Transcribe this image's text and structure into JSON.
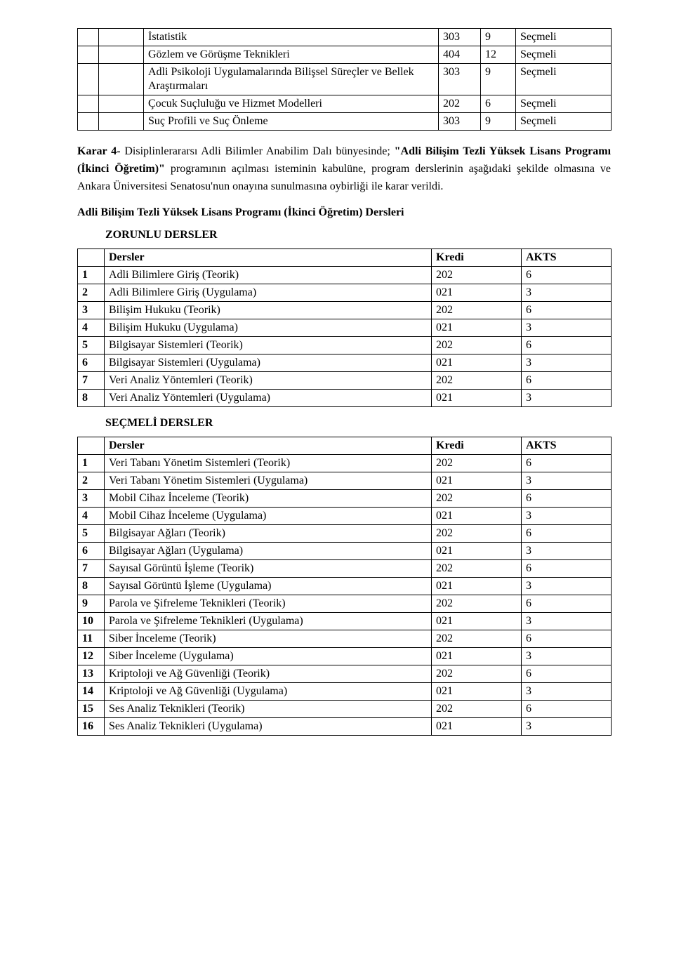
{
  "table1_rows": [
    {
      "name": "İstatistik",
      "code": "303",
      "n": "9",
      "type": "Seçmeli",
      "rowspan": 1
    },
    {
      "name": "Gözlem ve Görüşme Teknikleri",
      "code": "404",
      "n": "12",
      "type": "Seçmeli",
      "rowspan": 1
    },
    {
      "name": "Adli Psikoloji Uygulamalarında Bilişsel Süreçler ve Bellek Araştırmaları",
      "code": "303",
      "n": "9",
      "type": "Seçmeli",
      "rowspan": 1
    },
    {
      "name": "Çocuk Suçluluğu ve Hizmet Modelleri",
      "code": "202",
      "n": "6",
      "type": "Seçmeli",
      "rowspan": 1
    },
    {
      "name": "Suç Profili ve Suç Önleme",
      "code": "303",
      "n": "9",
      "type": "Seçmeli",
      "rowspan": 1
    }
  ],
  "karar_bold": "Karar 4-",
  "karar_rest1": " Disiplinlerararsı Adli Bilimler Anabilim Dalı bünyesinde; ",
  "karar_bold2": "\"Adli Bilişim Tezli Yüksek Lisans Programı (İkinci Öğretim)\"",
  "karar_rest2": " programının açılması isteminin kabulüne, program derslerinin aşağıdaki şekilde olmasına ve Ankara Üniversitesi Senatosu'nun onayına sunulmasına oybirliği ile karar verildi.",
  "program_title": "Adli Bilişim Tezli Yüksek Lisans Programı (İkinci Öğretim) Dersleri",
  "zorunlu_head": "ZORUNLU DERSLER",
  "secmeli_head": "SEÇMELİ DERSLER",
  "header_dersler": "Dersler",
  "header_kredi": "Kredi",
  "header_akts": "AKTS",
  "zorunlu_rows": [
    {
      "i": "1",
      "name": "Adli Bilimlere Giriş (Teorik)",
      "k": "202",
      "a": "6"
    },
    {
      "i": "2",
      "name": "Adli Bilimlere Giriş (Uygulama)",
      "k": "021",
      "a": "3"
    },
    {
      "i": "3",
      "name": "Bilişim Hukuku (Teorik)",
      "k": "202",
      "a": "6"
    },
    {
      "i": "4",
      "name": "Bilişim Hukuku (Uygulama)",
      "k": "021",
      "a": "3"
    },
    {
      "i": "5",
      "name": "Bilgisayar Sistemleri (Teorik)",
      "k": "202",
      "a": "6"
    },
    {
      "i": "6",
      "name": "Bilgisayar Sistemleri (Uygulama)",
      "k": "021",
      "a": "3"
    },
    {
      "i": "7",
      "name": "Veri Analiz Yöntemleri (Teorik)",
      "k": "202",
      "a": "6"
    },
    {
      "i": "8",
      "name": "Veri Analiz Yöntemleri (Uygulama)",
      "k": "021",
      "a": "3"
    }
  ],
  "secmeli_rows": [
    {
      "i": "1",
      "name": "Veri Tabanı Yönetim Sistemleri (Teorik)",
      "k": "202",
      "a": "6"
    },
    {
      "i": "2",
      "name": "Veri Tabanı Yönetim Sistemleri (Uygulama)",
      "k": "021",
      "a": "3"
    },
    {
      "i": "3",
      "name": "Mobil Cihaz İnceleme (Teorik)",
      "k": "202",
      "a": "6"
    },
    {
      "i": "4",
      "name": "Mobil Cihaz İnceleme (Uygulama)",
      "k": "021",
      "a": "3"
    },
    {
      "i": "5",
      "name": "Bilgisayar Ağları  (Teorik)",
      "k": "202",
      "a": "6"
    },
    {
      "i": "6",
      "name": "Bilgisayar Ağları (Uygulama)",
      "k": "021",
      "a": "3"
    },
    {
      "i": "7",
      "name": "Sayısal Görüntü İşleme (Teorik)",
      "k": "202",
      "a": "6"
    },
    {
      "i": "8",
      "name": "Sayısal Görüntü İşleme (Uygulama)",
      "k": "021",
      "a": "3"
    },
    {
      "i": "9",
      "name": "Parola ve Şifreleme Teknikleri (Teorik)",
      "k": "202",
      "a": "6"
    },
    {
      "i": "10",
      "name": "Parola ve Şifreleme Teknikleri (Uygulama)",
      "k": "021",
      "a": "3"
    },
    {
      "i": "11",
      "name": "Siber İnceleme (Teorik)",
      "k": "202",
      "a": "6"
    },
    {
      "i": "12",
      "name": "Siber İnceleme (Uygulama)",
      "k": "021",
      "a": "3"
    },
    {
      "i": "13",
      "name": "Kriptoloji ve Ağ Güvenliği (Teorik)",
      "k": "202",
      "a": "6"
    },
    {
      "i": "14",
      "name": "Kriptoloji ve Ağ Güvenliği (Uygulama)",
      "k": "021",
      "a": "3"
    },
    {
      "i": "15",
      "name": "Ses Analiz Teknikleri (Teorik)",
      "k": "202",
      "a": "6"
    },
    {
      "i": "16",
      "name": "Ses Analiz Teknikleri (Uygulama)",
      "k": "021",
      "a": "3"
    }
  ]
}
